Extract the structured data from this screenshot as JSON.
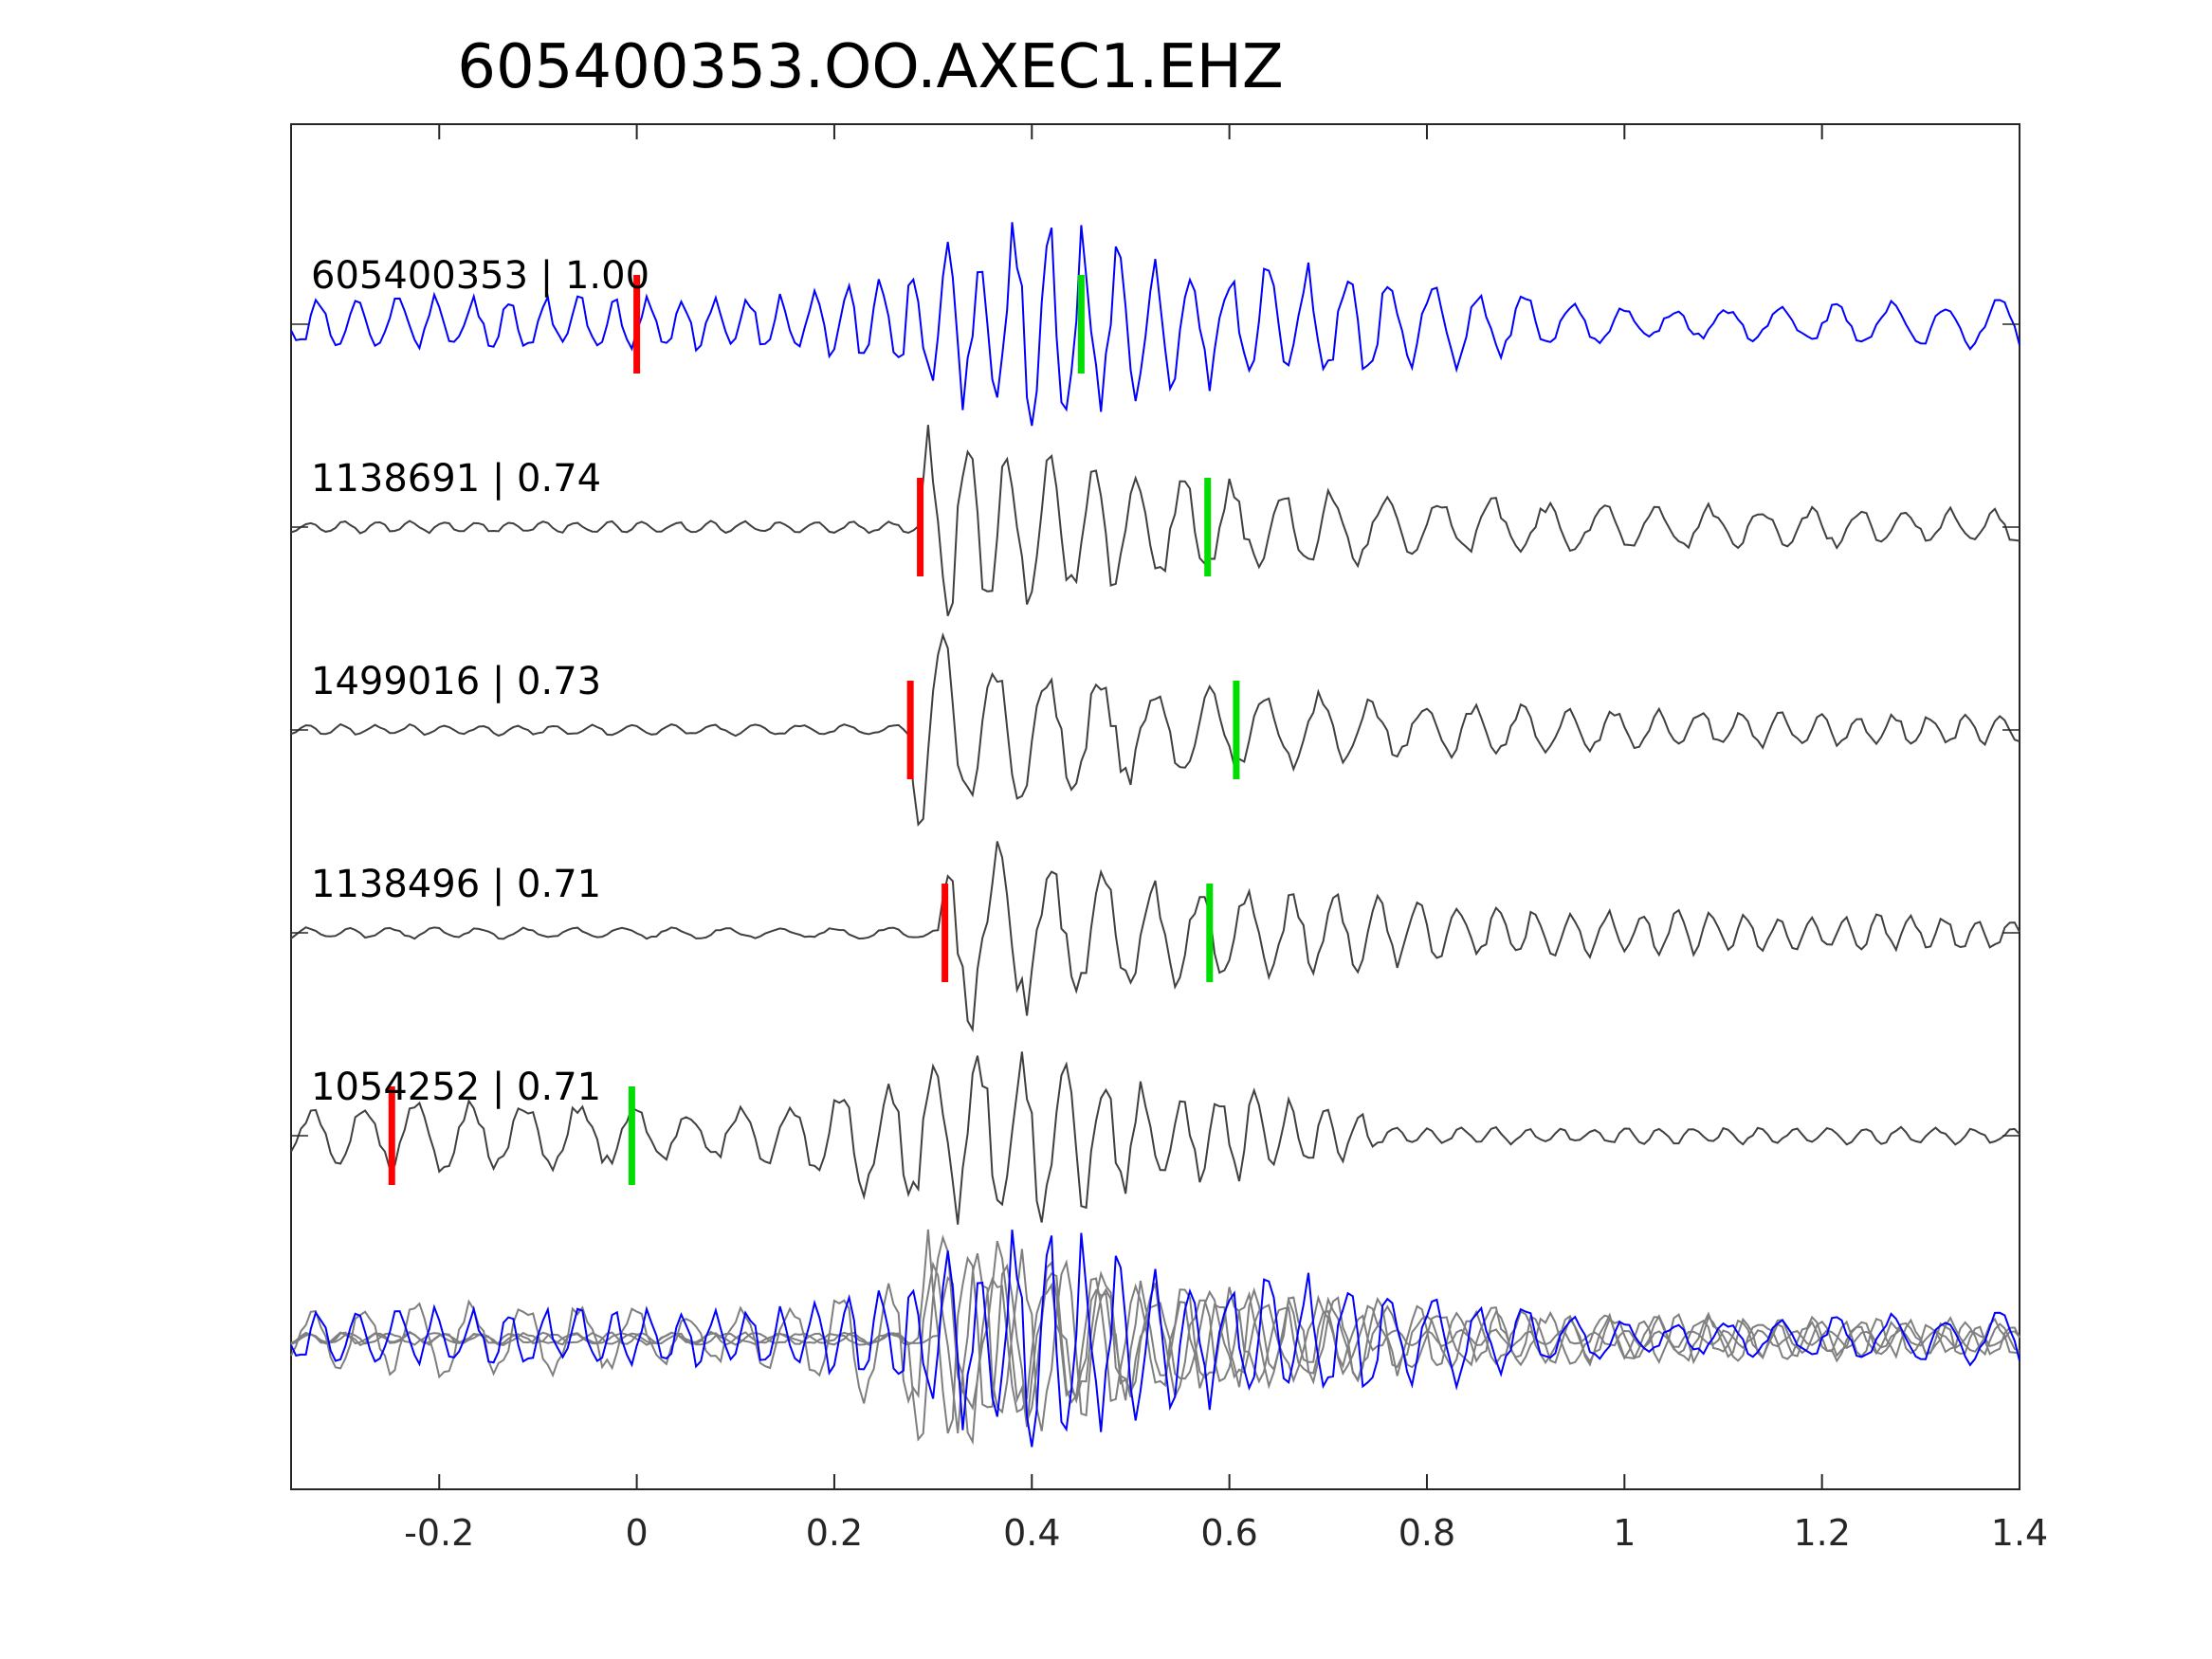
{
  "title": "605400353.OO.AXEC1.EHZ",
  "chart_data": {
    "type": "line",
    "title": "605400353.OO.AXEC1.EHZ",
    "xlabel": "",
    "ylabel": "",
    "xlim": [
      -0.35,
      1.4
    ],
    "grid": false,
    "x_ticks": [
      -0.2,
      0,
      0.2,
      0.4,
      0.6,
      0.8,
      1,
      1.2,
      1.4
    ],
    "x_tick_labels": [
      "-0.2",
      "0",
      "0.2",
      "0.4",
      "0.6",
      "0.8",
      "1",
      "1.2",
      "1.4"
    ],
    "colors": {
      "template": "#0000ff",
      "match": "#404040",
      "stack_match": "#7f7f7f",
      "p_pick": "#ff0000",
      "s_pick": "#00dd00",
      "axes": "#262626"
    },
    "traces": [
      {
        "label": "605400353 | 1.00",
        "id": "605400353",
        "cc": 1.0,
        "color": "#0000ff",
        "p_pick": 0.0,
        "s_pick": 0.45,
        "envelope": "template",
        "amplitude": 1.0,
        "seed": 1
      },
      {
        "label": "1138691 | 0.74",
        "id": "1138691",
        "cc": 0.74,
        "color": "#404040",
        "p_pick": 0.287,
        "s_pick": 0.578,
        "envelope": "onset",
        "onset": 0.285,
        "amplitude": 1.0,
        "seed": 2
      },
      {
        "label": "1499016 | 0.73",
        "id": "1499016",
        "cc": 0.73,
        "color": "#404040",
        "p_pick": 0.277,
        "s_pick": 0.607,
        "envelope": "onset",
        "onset": 0.275,
        "amplitude": 0.9,
        "seed": 3
      },
      {
        "label": "1138496 | 0.71",
        "id": "1138496",
        "cc": 0.71,
        "color": "#404040",
        "p_pick": 0.312,
        "s_pick": 0.58,
        "envelope": "onset",
        "onset": 0.308,
        "amplitude": 0.95,
        "seed": 4
      },
      {
        "label": "1054252 | 0.71",
        "id": "1054252",
        "cc": 0.71,
        "color": "#404040",
        "p_pick": -0.248,
        "s_pick": -0.005,
        "envelope": "early",
        "amplitude": 0.9,
        "seed": 5
      }
    ]
  }
}
